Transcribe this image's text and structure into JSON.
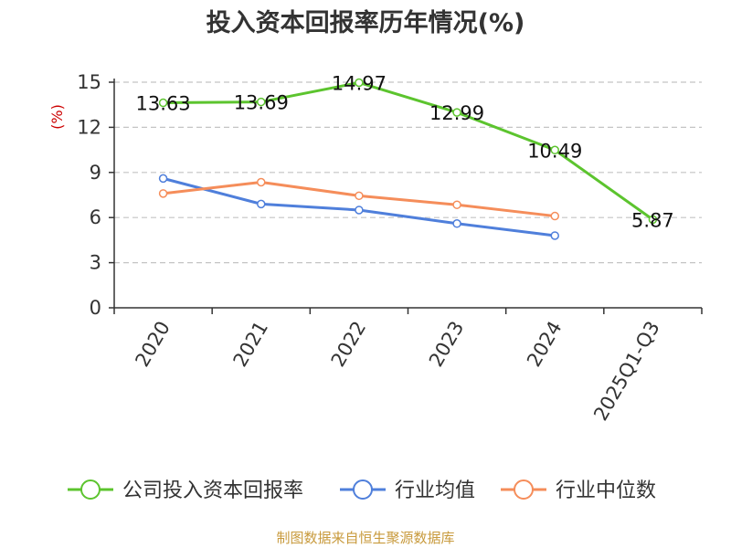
{
  "chart_data": {
    "type": "line",
    "title": "投入资本回报率历年情况(%)",
    "ylabel": "(%)",
    "xlabel": "",
    "categories": [
      "2020",
      "2021",
      "2022",
      "2023",
      "2024",
      "2025Q1-Q3"
    ],
    "ylim": [
      0,
      15
    ],
    "yticks": [
      0,
      3,
      6,
      9,
      12,
      15
    ],
    "grid": true,
    "legend_position": "bottom",
    "series": [
      {
        "name": "公司投入资本回报率",
        "color": "#5cc42e",
        "values": [
          13.63,
          13.69,
          14.97,
          12.99,
          10.49,
          5.87
        ],
        "labels": [
          "13.63",
          "13.69",
          "14.97",
          "12.99",
          "10.49",
          "5.87"
        ]
      },
      {
        "name": "行业均值",
        "color": "#4f7fdb",
        "values": [
          8.6,
          6.9,
          6.5,
          5.6,
          4.8,
          null
        ]
      },
      {
        "name": "行业中位数",
        "color": "#f58d5a",
        "values": [
          7.6,
          8.35,
          7.45,
          6.85,
          6.1,
          null
        ]
      }
    ],
    "source": "制图数据来自恒生聚源数据库"
  }
}
